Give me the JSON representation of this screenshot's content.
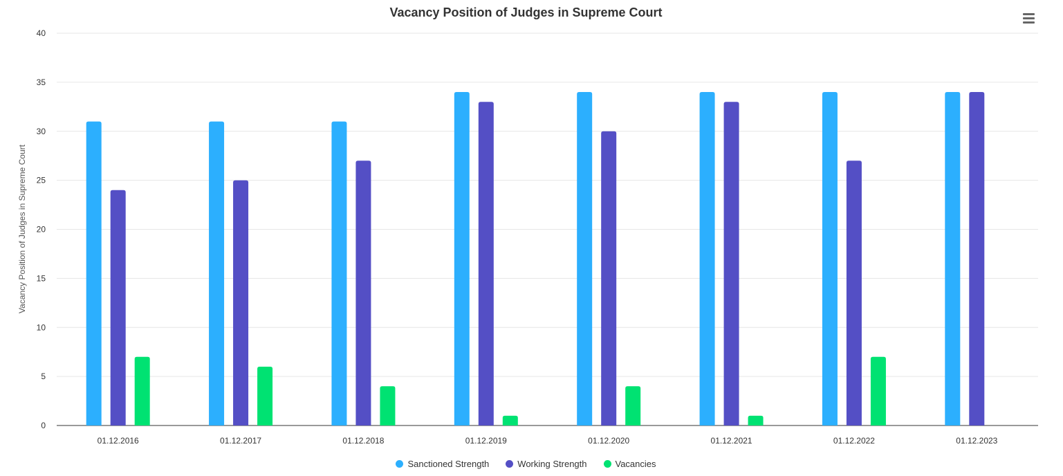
{
  "chart_data": {
    "type": "bar",
    "title": "Vacancy Position of Judges in Supreme Court",
    "xlabel": "",
    "ylabel": "Vacancy Position of Judges in Supreme Court",
    "ylim": [
      0,
      40
    ],
    "yticks": [
      0,
      5,
      10,
      15,
      20,
      25,
      30,
      35,
      40
    ],
    "grid": true,
    "legend_position": "bottom-center",
    "categories": [
      "01.12.2016",
      "01.12.2017",
      "01.12.2018",
      "01.12.2019",
      "01.12.2020",
      "01.12.2021",
      "01.12.2022",
      "01.12.2023"
    ],
    "series": [
      {
        "name": "Sanctioned Strength",
        "color": "#2caffe",
        "values": [
          31,
          31,
          31,
          34,
          34,
          34,
          34,
          34
        ]
      },
      {
        "name": "Working Strength",
        "color": "#544fc5",
        "values": [
          24,
          25,
          27,
          33,
          30,
          33,
          27,
          34
        ]
      },
      {
        "name": "Vacancies",
        "color": "#00e272",
        "values": [
          7,
          6,
          4,
          1,
          4,
          1,
          7,
          0
        ]
      }
    ]
  },
  "menu": {
    "icon": "hamburger-menu-icon"
  }
}
